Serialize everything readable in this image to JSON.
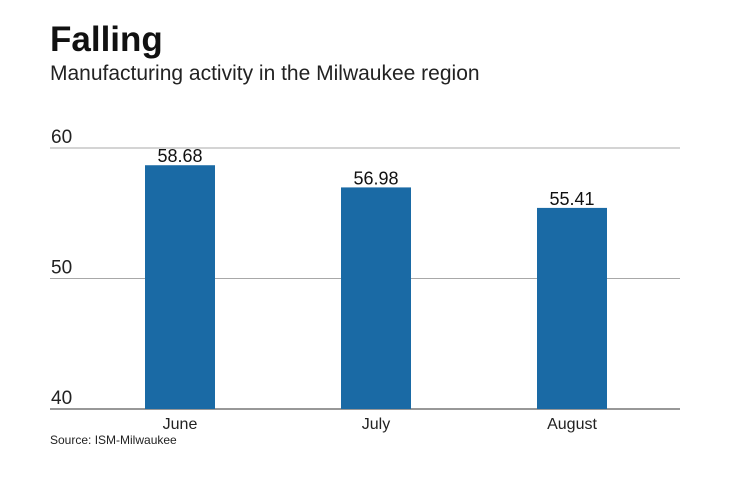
{
  "header": {
    "title": "Falling",
    "subtitle": "Manufacturing activity in the Milwaukee region"
  },
  "footer": {
    "source": "Source: ISM-Milwaukee"
  },
  "colors": {
    "bar": "#1a6aa5",
    "gridline": "#a8a8a8",
    "axis": "#777777"
  },
  "chart_data": {
    "type": "bar",
    "categories": [
      "June",
      "July",
      "August"
    ],
    "values": [
      58.68,
      56.98,
      55.41
    ],
    "data_labels": [
      "58.68",
      "56.98",
      "55.41"
    ],
    "title": "Falling",
    "subtitle": "Manufacturing activity in the Milwaukee region",
    "xlabel": "",
    "ylabel": "",
    "ylim": [
      40,
      60
    ],
    "yticks": [
      40,
      50,
      60
    ],
    "ytick_labels": [
      "40",
      "50",
      "60"
    ],
    "grid": true,
    "legend": "none"
  }
}
